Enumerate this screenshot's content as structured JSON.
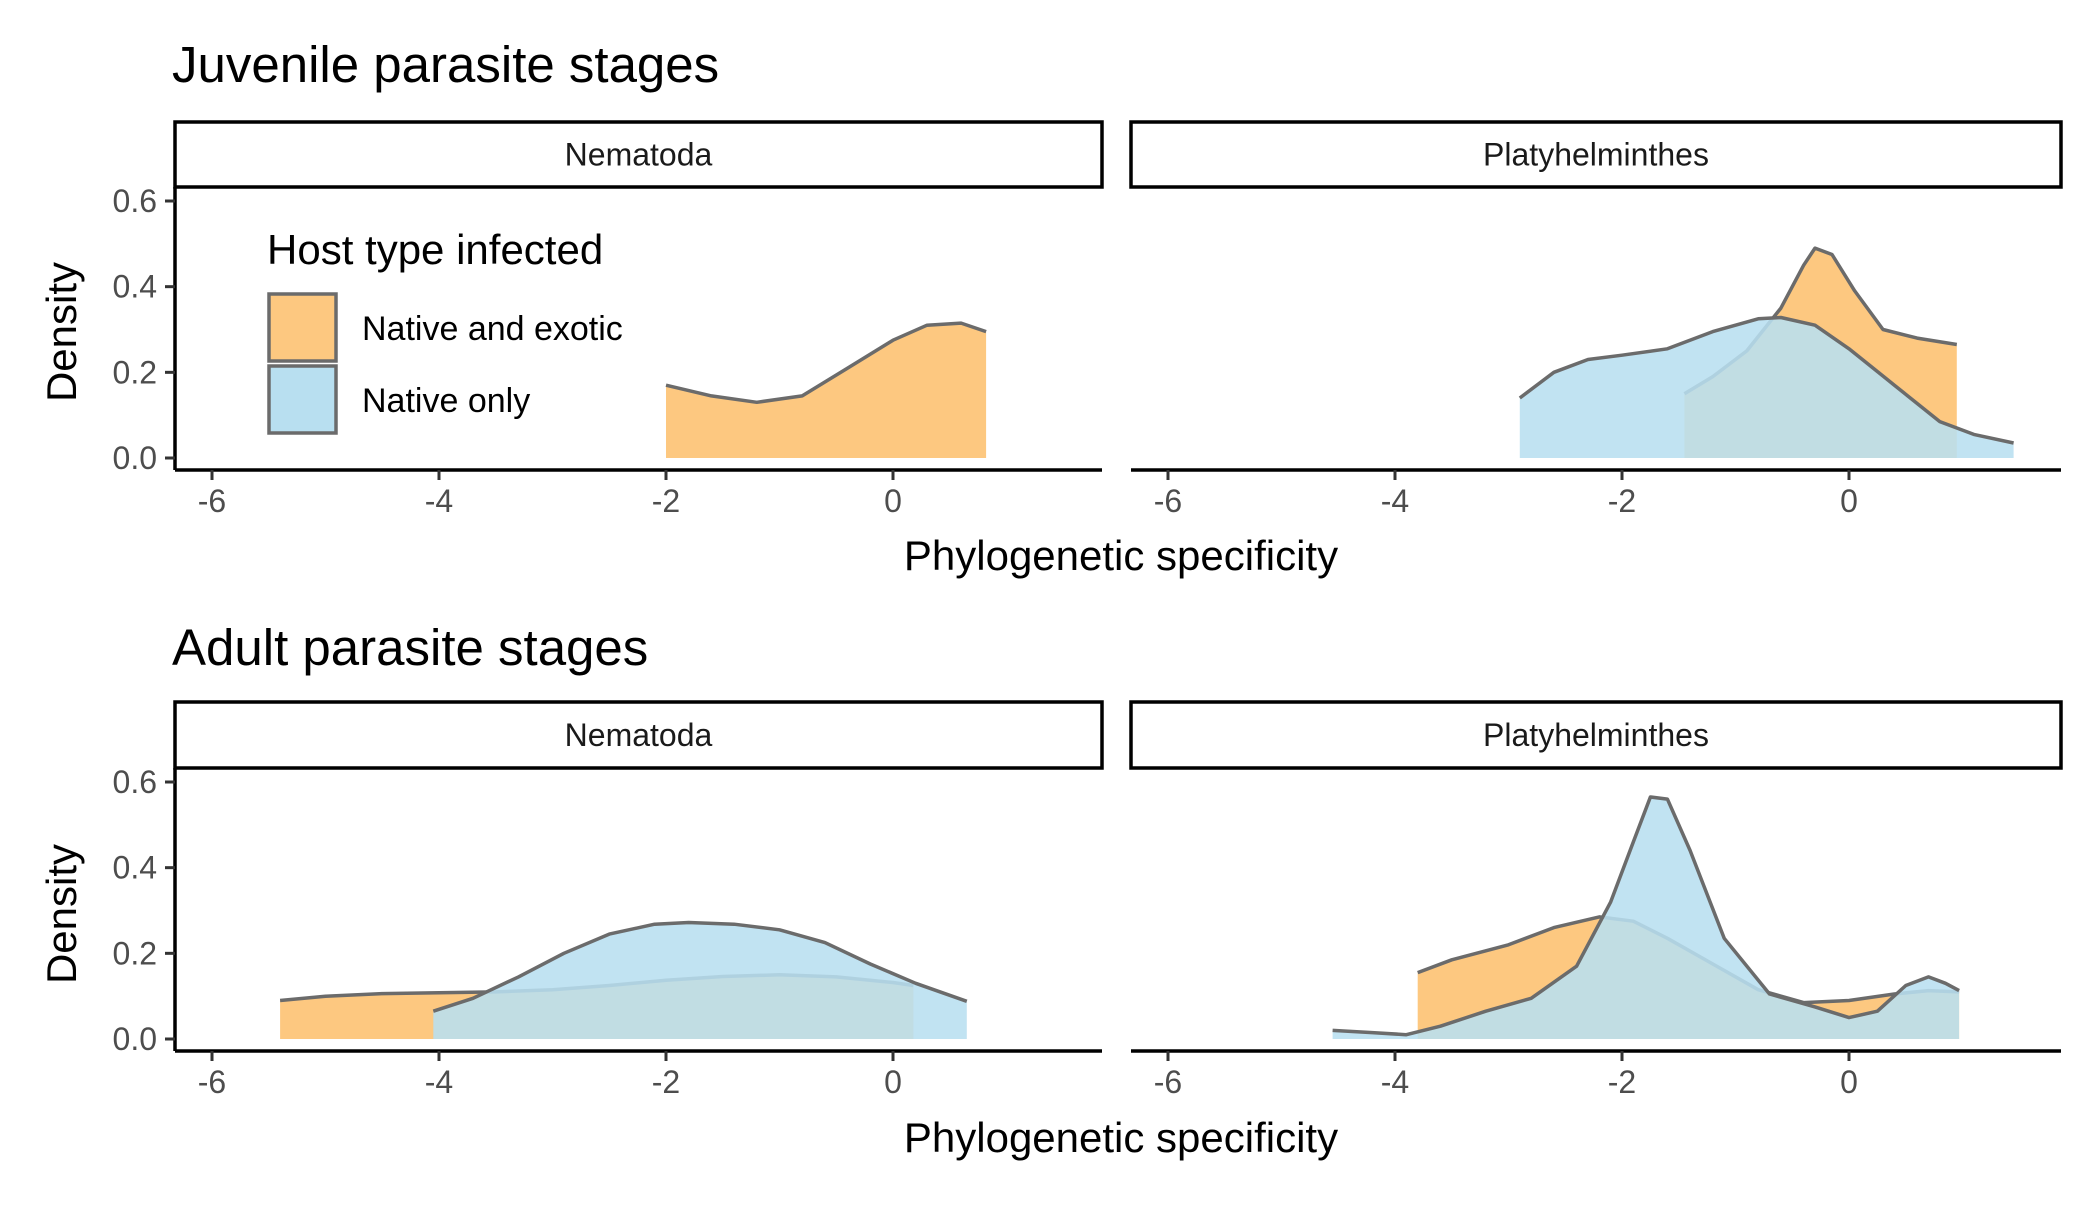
{
  "legend": {
    "title": "Host type infected",
    "items": [
      {
        "label": "Native and exotic",
        "color": "#fdc880"
      },
      {
        "label": "Native only",
        "color": "#b8dff0"
      }
    ],
    "overlap_color": "#b8c3af",
    "outline_color": "#6b6b6b"
  },
  "chart_data": [
    {
      "type": "area",
      "title": "Juvenile parasite stages",
      "xlabel": "Phylogenetic specificity",
      "ylabel": "Density",
      "xlim": [
        -6.4,
        1.9
      ],
      "ylim": [
        0,
        0.6
      ],
      "x_ticks": [
        -6,
        -4,
        -2,
        0
      ],
      "y_ticks": [
        0.0,
        0.2,
        0.4,
        0.6
      ],
      "grid": false,
      "legend": "top-left",
      "panels": [
        {
          "label": "Nematoda",
          "series": [
            {
              "name": "Native and exotic",
              "points": [
                [
                  -2.0,
                  0.17
                ],
                [
                  -1.6,
                  0.145
                ],
                [
                  -1.2,
                  0.13
                ],
                [
                  -0.8,
                  0.145
                ],
                [
                  -0.4,
                  0.21
                ],
                [
                  0.0,
                  0.275
                ],
                [
                  0.3,
                  0.31
                ],
                [
                  0.6,
                  0.315
                ],
                [
                  0.82,
                  0.295
                ]
              ]
            }
          ]
        },
        {
          "label": "Platyhelminthes",
          "series": [
            {
              "name": "Native and exotic",
              "points": [
                [
                  -1.45,
                  0.15
                ],
                [
                  -1.2,
                  0.19
                ],
                [
                  -0.9,
                  0.25
                ],
                [
                  -0.6,
                  0.35
                ],
                [
                  -0.4,
                  0.45
                ],
                [
                  -0.3,
                  0.49
                ],
                [
                  -0.15,
                  0.475
                ],
                [
                  0.05,
                  0.39
                ],
                [
                  0.3,
                  0.3
                ],
                [
                  0.6,
                  0.28
                ],
                [
                  0.95,
                  0.265
                ]
              ]
            },
            {
              "name": "Native only",
              "points": [
                [
                  -2.9,
                  0.14
                ],
                [
                  -2.6,
                  0.2
                ],
                [
                  -2.3,
                  0.23
                ],
                [
                  -2.0,
                  0.24
                ],
                [
                  -1.6,
                  0.255
                ],
                [
                  -1.2,
                  0.295
                ],
                [
                  -0.8,
                  0.325
                ],
                [
                  -0.6,
                  0.328
                ],
                [
                  -0.3,
                  0.31
                ],
                [
                  0.0,
                  0.255
                ],
                [
                  0.4,
                  0.17
                ],
                [
                  0.8,
                  0.085
                ],
                [
                  1.1,
                  0.055
                ],
                [
                  1.45,
                  0.035
                ]
              ]
            }
          ]
        }
      ]
    },
    {
      "type": "area",
      "title": "Adult parasite stages",
      "xlabel": "Phylogenetic specificity",
      "ylabel": "Density",
      "xlim": [
        -6.4,
        1.9
      ],
      "ylim": [
        0,
        0.6
      ],
      "x_ticks": [
        -6,
        -4,
        -2,
        0
      ],
      "y_ticks": [
        0.0,
        0.2,
        0.4,
        0.6
      ],
      "grid": false,
      "panels": [
        {
          "label": "Nematoda",
          "series": [
            {
              "name": "Native and exotic",
              "points": [
                [
                  -5.4,
                  0.09
                ],
                [
                  -5.0,
                  0.1
                ],
                [
                  -4.5,
                  0.106
                ],
                [
                  -4.0,
                  0.108
                ],
                [
                  -3.5,
                  0.11
                ],
                [
                  -3.0,
                  0.115
                ],
                [
                  -2.5,
                  0.125
                ],
                [
                  -2.0,
                  0.137
                ],
                [
                  -1.5,
                  0.146
                ],
                [
                  -1.0,
                  0.15
                ],
                [
                  -0.5,
                  0.145
                ],
                [
                  0.0,
                  0.132
                ],
                [
                  0.18,
                  0.125
                ]
              ]
            },
            {
              "name": "Native only",
              "points": [
                [
                  -4.05,
                  0.065
                ],
                [
                  -3.7,
                  0.095
                ],
                [
                  -3.3,
                  0.145
                ],
                [
                  -2.9,
                  0.2
                ],
                [
                  -2.5,
                  0.245
                ],
                [
                  -2.1,
                  0.268
                ],
                [
                  -1.8,
                  0.272
                ],
                [
                  -1.4,
                  0.268
                ],
                [
                  -1.0,
                  0.255
                ],
                [
                  -0.6,
                  0.225
                ],
                [
                  -0.2,
                  0.175
                ],
                [
                  0.2,
                  0.13
                ],
                [
                  0.65,
                  0.088
                ]
              ]
            }
          ]
        },
        {
          "label": "Platyhelminthes",
          "series": [
            {
              "name": "Native and exotic",
              "points": [
                [
                  -3.8,
                  0.155
                ],
                [
                  -3.5,
                  0.185
                ],
                [
                  -3.0,
                  0.22
                ],
                [
                  -2.6,
                  0.26
                ],
                [
                  -2.2,
                  0.285
                ],
                [
                  -1.9,
                  0.275
                ],
                [
                  -1.6,
                  0.235
                ],
                [
                  -1.2,
                  0.175
                ],
                [
                  -0.8,
                  0.115
                ],
                [
                  -0.4,
                  0.085
                ],
                [
                  0.0,
                  0.09
                ],
                [
                  0.4,
                  0.105
                ],
                [
                  0.7,
                  0.113
                ],
                [
                  0.97,
                  0.11
                ]
              ]
            },
            {
              "name": "Native only",
              "points": [
                [
                  -4.55,
                  0.02
                ],
                [
                  -4.2,
                  0.015
                ],
                [
                  -3.9,
                  0.01
                ],
                [
                  -3.6,
                  0.03
                ],
                [
                  -3.2,
                  0.065
                ],
                [
                  -2.8,
                  0.095
                ],
                [
                  -2.4,
                  0.17
                ],
                [
                  -2.1,
                  0.32
                ],
                [
                  -1.9,
                  0.46
                ],
                [
                  -1.75,
                  0.565
                ],
                [
                  -1.6,
                  0.56
                ],
                [
                  -1.4,
                  0.44
                ],
                [
                  -1.1,
                  0.235
                ],
                [
                  -0.7,
                  0.105
                ],
                [
                  -0.3,
                  0.075
                ],
                [
                  0.0,
                  0.05
                ],
                [
                  0.25,
                  0.065
                ],
                [
                  0.5,
                  0.125
                ],
                [
                  0.7,
                  0.145
                ],
                [
                  0.85,
                  0.13
                ],
                [
                  0.97,
                  0.113
                ]
              ]
            }
          ]
        }
      ]
    }
  ]
}
